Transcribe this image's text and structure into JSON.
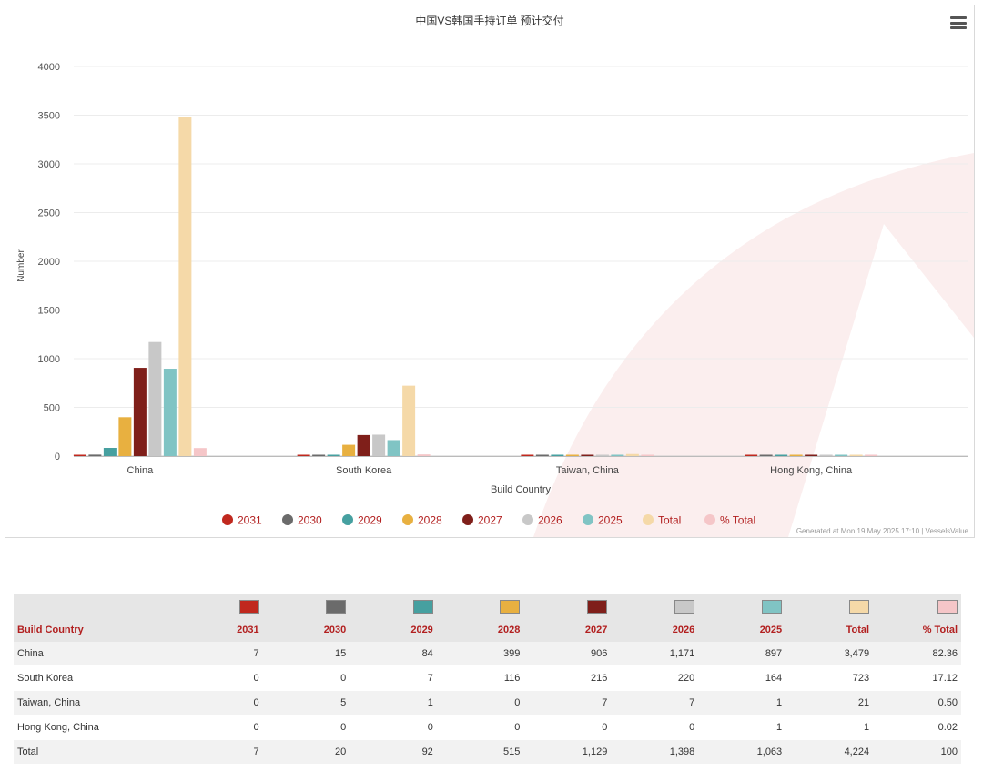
{
  "colors": {
    "2031": "#c0281e",
    "2030": "#6b6b6b",
    "2029": "#46a0a0",
    "2028": "#e8b040",
    "2027": "#7f1f1a",
    "2026": "#c8c8c8",
    "2025": "#80c4c4",
    "Total": "#f5d9a8",
    "% Total": "#f5c6c8"
  },
  "header": {
    "menu_icon": "hamburger-menu-icon"
  },
  "chart_data": {
    "type": "bar",
    "title": "中国VS韩国手持订单 预计交付",
    "xlabel": "Build Country",
    "ylabel": "Number",
    "ylim": [
      0,
      4000
    ],
    "yticks": [
      0,
      500,
      1000,
      1500,
      2000,
      2500,
      3000,
      3500,
      4000
    ],
    "grid": true,
    "legend_position": "bottom-center",
    "categories": [
      "China",
      "South Korea",
      "Taiwan, China",
      "Hong Kong, China"
    ],
    "series": [
      {
        "name": "2031",
        "values": [
          7,
          0,
          0,
          0
        ]
      },
      {
        "name": "2030",
        "values": [
          15,
          0,
          5,
          0
        ]
      },
      {
        "name": "2029",
        "values": [
          84,
          7,
          1,
          0
        ]
      },
      {
        "name": "2028",
        "values": [
          399,
          116,
          0,
          0
        ]
      },
      {
        "name": "2027",
        "values": [
          906,
          216,
          7,
          0
        ]
      },
      {
        "name": "2026",
        "values": [
          1171,
          220,
          7,
          0
        ]
      },
      {
        "name": "2025",
        "values": [
          897,
          164,
          1,
          1
        ]
      },
      {
        "name": "Total",
        "values": [
          3479,
          723,
          21,
          1
        ]
      },
      {
        "name": "% Total",
        "values": [
          82.36,
          17.12,
          0.5,
          0.02
        ]
      }
    ]
  },
  "credits": "Generated at Mon 19 May 2025 17:10 | VesselsValue",
  "table": {
    "columns": [
      "Build Country",
      "2031",
      "2030",
      "2029",
      "2028",
      "2027",
      "2026",
      "2025",
      "Total",
      "% Total"
    ],
    "rows": [
      [
        "China",
        "7",
        "15",
        "84",
        "399",
        "906",
        "1,171",
        "897",
        "3,479",
        "82.36"
      ],
      [
        "South Korea",
        "0",
        "0",
        "7",
        "116",
        "216",
        "220",
        "164",
        "723",
        "17.12"
      ],
      [
        "Taiwan, China",
        "0",
        "5",
        "1",
        "0",
        "7",
        "7",
        "1",
        "21",
        "0.50"
      ],
      [
        "Hong Kong, China",
        "0",
        "0",
        "0",
        "0",
        "0",
        "0",
        "1",
        "1",
        "0.02"
      ],
      [
        "Total",
        "7",
        "20",
        "92",
        "515",
        "1,129",
        "1,398",
        "1,063",
        "4,224",
        "100"
      ]
    ]
  }
}
